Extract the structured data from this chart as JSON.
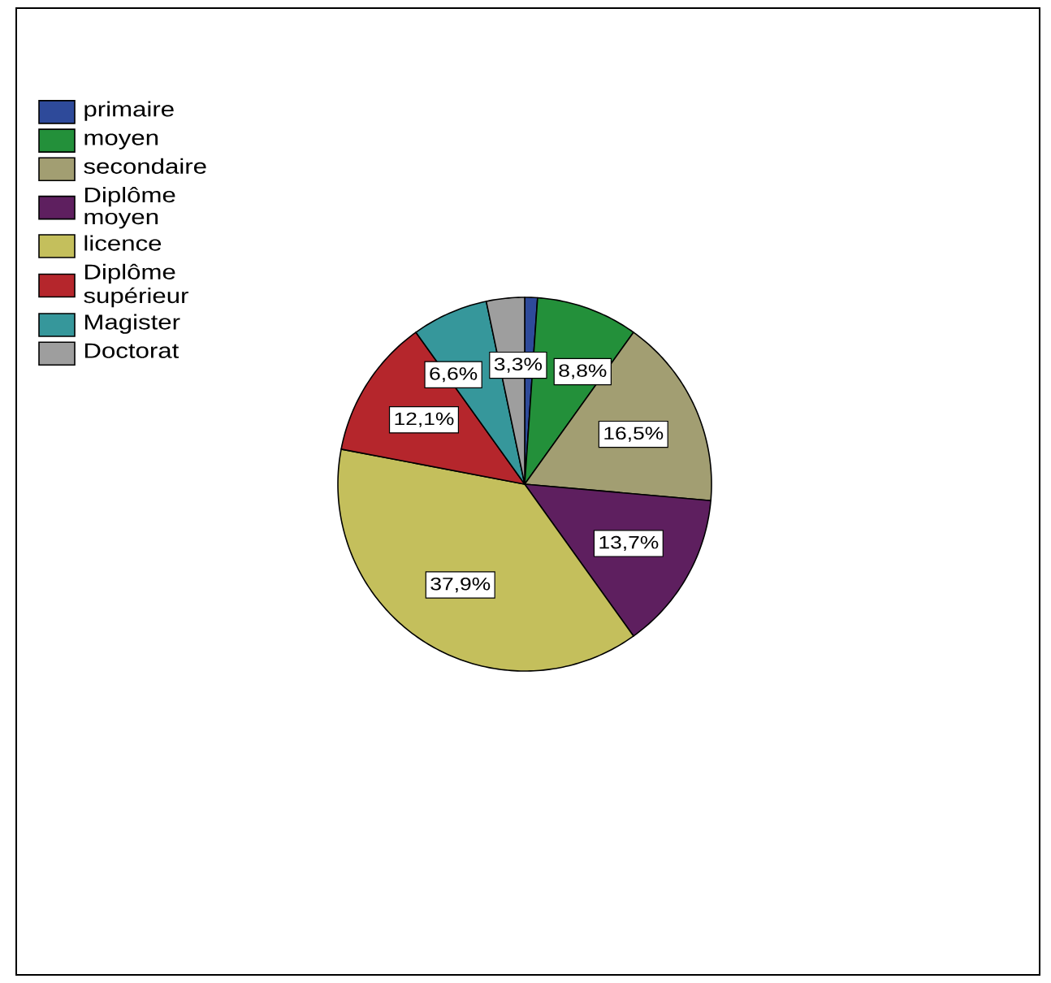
{
  "chart_data": {
    "type": "pie",
    "categories": [
      "primaire",
      "moyen",
      "secondaire",
      "Diplôme moyen",
      "licence",
      "Diplôme supérieur",
      "Magister",
      "Doctorat"
    ],
    "values": [
      1.1,
      8.8,
      16.5,
      13.7,
      37.9,
      12.1,
      6.6,
      3.3
    ],
    "value_labels": [
      null,
      "8,8%",
      "16,5%",
      "13,7%",
      "37,9%",
      "12,1%",
      "6,6%",
      "3,3%"
    ],
    "colors": [
      "#2e4a9a",
      "#23903a",
      "#a29e72",
      "#5e1f5f",
      "#c4bf5c",
      "#b5262c",
      "#36979b",
      "#9e9e9e"
    ],
    "legend": "top left"
  }
}
